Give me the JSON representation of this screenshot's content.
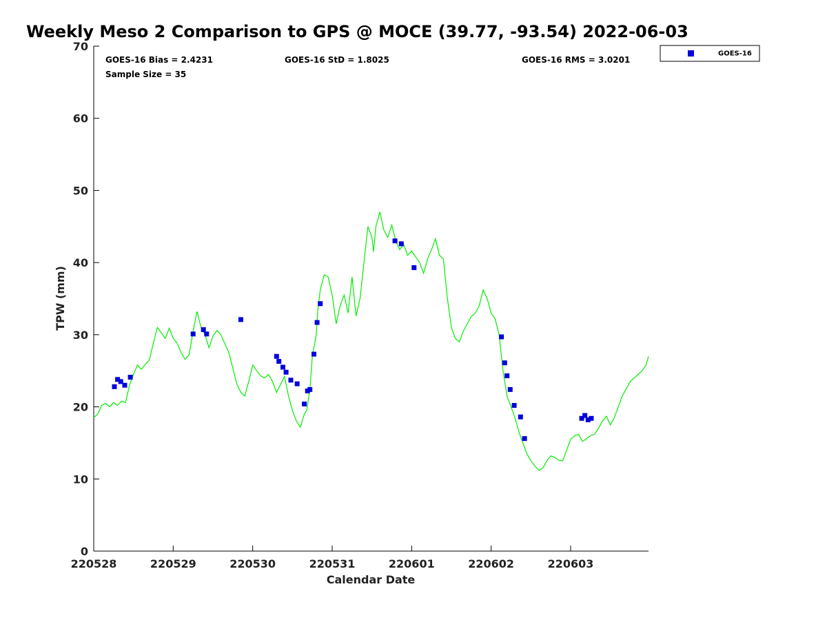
{
  "chart_data": {
    "type": "line",
    "title": "Weekly Meso 2 Comparison to GPS @ MOCE (39.77, -93.54) 2022-06-03",
    "xlabel": "Calendar Date",
    "ylabel": "TPW (mm)",
    "x_axis_unit": "days",
    "xlim": [
      0,
      6.98
    ],
    "ylim": [
      0,
      70
    ],
    "x_ticks": [
      {
        "pos": 0,
        "label": "220528"
      },
      {
        "pos": 1,
        "label": "220529"
      },
      {
        "pos": 2,
        "label": "220530"
      },
      {
        "pos": 3,
        "label": "220531"
      },
      {
        "pos": 4,
        "label": "220601"
      },
      {
        "pos": 5,
        "label": "220602"
      },
      {
        "pos": 6,
        "label": "220603"
      }
    ],
    "y_ticks": [
      0,
      10,
      20,
      30,
      40,
      50,
      60,
      70
    ],
    "grid": false,
    "legend_position": "top-right, outside plot",
    "stats": {
      "bias": "GOES-16 Bias = 2.4231",
      "std": "GOES-16 StD = 1.8025",
      "rms": "GOES-16 RMS = 3.0201",
      "sample_size": "Sample Size = 35"
    },
    "series": [
      {
        "kind": "line",
        "color": "#00ee00",
        "x": [
          0.0,
          0.05,
          0.1,
          0.15,
          0.2,
          0.25,
          0.3,
          0.35,
          0.4,
          0.45,
          0.5,
          0.55,
          0.6,
          0.65,
          0.7,
          0.75,
          0.8,
          0.9,
          0.95,
          1.0,
          1.05,
          1.1,
          1.15,
          1.2,
          1.25,
          1.3,
          1.35,
          1.4,
          1.45,
          1.5,
          1.55,
          1.6,
          1.7,
          1.8,
          1.85,
          1.9,
          1.95,
          2.0,
          2.05,
          2.1,
          2.15,
          2.2,
          2.25,
          2.3,
          2.4,
          2.45,
          2.5,
          2.55,
          2.6,
          2.65,
          2.68,
          2.72,
          2.75,
          2.8,
          2.82,
          2.85,
          2.88,
          2.9,
          2.95,
          3.0,
          3.05,
          3.1,
          3.15,
          3.2,
          3.25,
          3.3,
          3.35,
          3.4,
          3.45,
          3.5,
          3.52,
          3.55,
          3.6,
          3.65,
          3.7,
          3.75,
          3.8,
          3.85,
          3.9,
          3.95,
          4.0,
          4.05,
          4.1,
          4.15,
          4.2,
          4.25,
          4.3,
          4.35,
          4.4,
          4.45,
          4.5,
          4.55,
          4.6,
          4.65,
          4.7,
          4.75,
          4.8,
          4.85,
          4.9,
          4.95,
          5.0,
          5.05,
          5.1,
          5.15,
          5.2,
          5.25,
          5.3,
          5.35,
          5.4,
          5.45,
          5.5,
          5.55,
          5.6,
          5.65,
          5.7,
          5.75,
          5.8,
          5.85,
          5.9,
          6.0,
          6.05,
          6.1,
          6.15,
          6.2,
          6.25,
          6.3,
          6.35,
          6.4,
          6.45,
          6.5,
          6.55,
          6.6,
          6.65,
          6.7,
          6.75,
          6.8,
          6.85,
          6.9,
          6.95,
          6.98
        ],
        "y": [
          18.5,
          19.0,
          20.2,
          20.5,
          20.0,
          20.6,
          20.2,
          20.8,
          20.6,
          23.0,
          24.5,
          25.8,
          25.2,
          25.9,
          26.5,
          28.8,
          31.0,
          29.5,
          30.9,
          29.5,
          28.8,
          27.5,
          26.6,
          27.2,
          30.5,
          33.2,
          31.0,
          30.0,
          28.2,
          29.8,
          30.6,
          30.0,
          27.5,
          23.2,
          22.0,
          21.5,
          23.5,
          25.8,
          25.0,
          24.3,
          24.0,
          24.5,
          23.5,
          22.0,
          24.2,
          21.5,
          19.5,
          18.0,
          17.2,
          19.0,
          19.5,
          22.5,
          27.0,
          30.0,
          33.5,
          36.2,
          37.5,
          38.3,
          38.0,
          35.5,
          31.5,
          34.0,
          35.5,
          33.0,
          38.0,
          32.6,
          35.0,
          40.0,
          45.0,
          43.5,
          41.5,
          45.0,
          47.0,
          44.5,
          43.5,
          45.2,
          43.0,
          41.8,
          42.5,
          41.0,
          41.6,
          40.8,
          40.0,
          38.5,
          40.5,
          41.8,
          43.3,
          41.0,
          40.5,
          35.0,
          31.0,
          29.5,
          29.0,
          30.5,
          31.5,
          32.5,
          33.0,
          34.0,
          36.2,
          35.0,
          33.0,
          32.2,
          30.0,
          25.0,
          21.5,
          20.0,
          18.5,
          16.5,
          15.0,
          13.5,
          12.5,
          11.8,
          11.2,
          11.5,
          12.5,
          13.2,
          13.0,
          12.6,
          12.5,
          15.5,
          16.0,
          16.2,
          15.2,
          15.6,
          16.0,
          16.2,
          17.0,
          18.0,
          18.7,
          17.5,
          18.5,
          20.0,
          21.5,
          22.5,
          23.5,
          24.0,
          24.5,
          25.0,
          25.8,
          27.0
        ]
      },
      {
        "name": "GOES-16",
        "kind": "scatter",
        "marker": "square",
        "color": "#0000dd",
        "x": [
          0.26,
          0.3,
          0.34,
          0.39,
          0.46,
          1.25,
          1.38,
          1.42,
          1.85,
          2.3,
          2.33,
          2.38,
          2.42,
          2.48,
          2.56,
          2.65,
          2.69,
          2.72,
          2.77,
          2.81,
          2.85,
          3.79,
          3.87,
          4.03,
          5.13,
          5.17,
          5.2,
          5.24,
          5.29,
          5.37,
          5.42,
          6.14,
          6.18,
          6.22,
          6.26
        ],
        "y": [
          22.8,
          23.8,
          23.5,
          23.0,
          24.1,
          30.1,
          30.7,
          30.1,
          32.1,
          27.0,
          26.3,
          25.5,
          24.8,
          23.7,
          23.2,
          20.4,
          22.2,
          22.4,
          27.3,
          31.7,
          34.3,
          43.0,
          42.6,
          39.3,
          29.7,
          26.1,
          24.3,
          22.4,
          20.2,
          18.6,
          15.6,
          18.4,
          18.8,
          18.2,
          18.4
        ]
      }
    ]
  }
}
